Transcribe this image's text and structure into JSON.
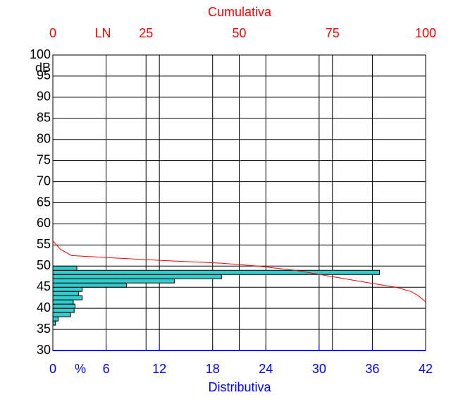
{
  "chart_data": {
    "type": "histogram",
    "orientation": "horizontal",
    "title": "Cumulativa",
    "x_label": "Distributiva",
    "x_unit": "%",
    "x2_unit": "LN",
    "y_unit": "dB",
    "bins": [
      36,
      37,
      38,
      39,
      40,
      41,
      42,
      43,
      44,
      45,
      46,
      47,
      48,
      49,
      50
    ],
    "values": [
      0.3,
      0.6,
      2.0,
      2.4,
      2.5,
      2.3,
      3.3,
      2.9,
      3.3,
      8.3,
      13.7,
      19.0,
      36.8,
      2.7
    ],
    "color": "#33cccc",
    "ylim": [
      30,
      100
    ],
    "yticks": [
      30,
      35,
      40,
      45,
      50,
      55,
      60,
      65,
      70,
      75,
      80,
      85,
      90,
      95,
      100
    ],
    "xlim": [
      0,
      42
    ],
    "xticks": [
      0,
      6,
      12,
      18,
      24,
      30,
      36,
      42
    ],
    "x2lim": [
      0,
      100
    ],
    "x2ticks": [
      0,
      25,
      50,
      75,
      100
    ],
    "cumulative": {
      "color": "#ff0000",
      "x": [
        0,
        2,
        5,
        15,
        30,
        45,
        55,
        65,
        75,
        85,
        92,
        96,
        98,
        100
      ],
      "y": [
        56,
        54,
        52.5,
        52,
        51.3,
        50.7,
        50,
        49,
        47.5,
        46,
        45,
        44,
        43,
        41.5
      ]
    },
    "bottom_axis_color": "#0000ff",
    "top_axis_color": "#ff0000",
    "grid": true
  }
}
